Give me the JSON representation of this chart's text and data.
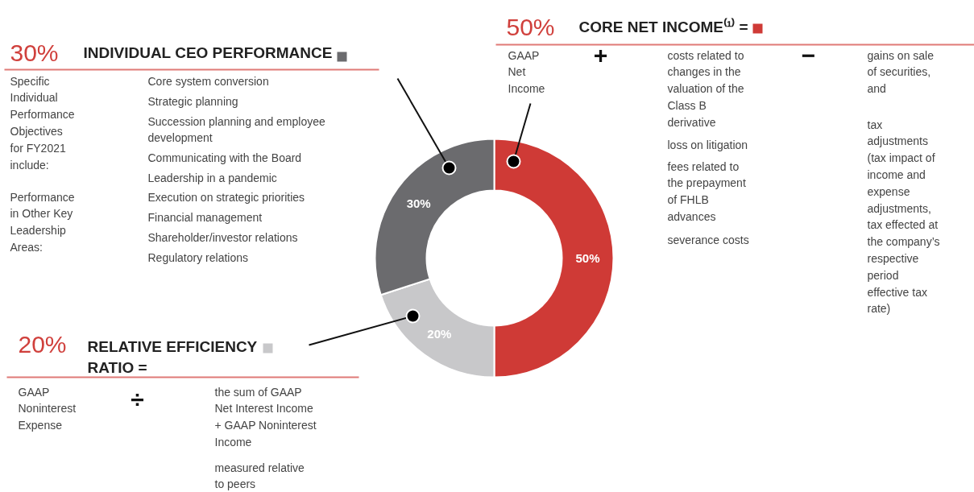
{
  "chart_data": {
    "type": "donut",
    "categories": [
      "CORE NET INCOME⁽¹⁾ =",
      "RELATIVE EFFICIENCY RATIO =",
      "INDIVIDUAL CEO PERFORMANCE"
    ],
    "values": [
      50,
      20,
      30
    ],
    "colors": [
      "#cf3a36",
      "#c8c8ca",
      "#6b6b6e"
    ],
    "value_labels": [
      "50%",
      "20%",
      "30%"
    ],
    "legend": "top",
    "annotations": [
      "GAAP\nNet\nIncome",
      "+",
      "costs related to\nchanges in the\nvaluation of the\nClass B\nderivative",
      "loss on litigation",
      "fees related to\nthe prepayment\nof FHLB\nadvances",
      "severance costs",
      "−",
      "gains on sale\nof securities,\nand",
      "tax\nadjustments\n(tax impact of\nincome and\nexpense\nadjustments,\ntax effected at\nthe company’s\nrespective\nperiod\neffective tax\nrate)",
      "GAAP\nNoninterest\nExpense",
      "÷",
      "the sum of GAAP\nNet Interest Income\n+ GAAP Noninterest\nIncome",
      "measured relative\nto peers",
      "Specific\nIndividual\nPerformance\nObjectives\nfor FY2021\ninclude:",
      "Performance\nin Other Key\nLeadership\nAreas:",
      "Core system conversion",
      "Strategic planning",
      "Succession planning and employee\ndevelopment",
      "Communicating with the Board",
      "Leadership in a pandemic",
      "Execution on strategic priorities",
      "Financial management",
      "Shareholder/investor relations",
      "Regulatory relations"
    ]
  }
}
